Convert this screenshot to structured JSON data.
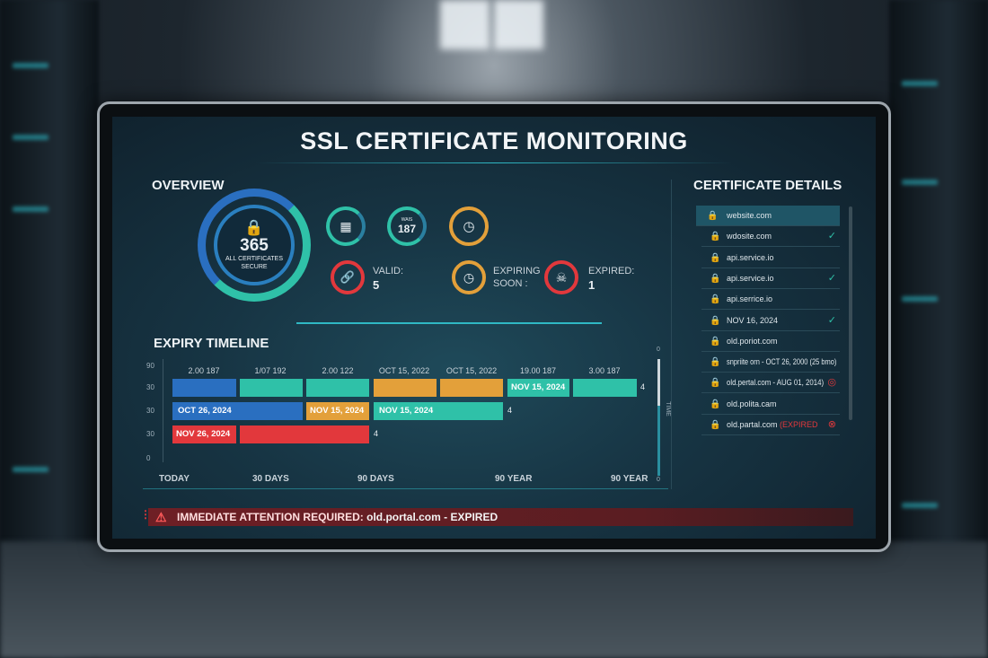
{
  "title": "SSL CERTIFICATE MONITORING",
  "overview": {
    "heading": "OVERVIEW",
    "main_value": "365",
    "main_label_1": "ALL CERTIFICATES",
    "main_label_2": "SECURE",
    "badge_value": "187",
    "badge_label": "WAIS",
    "valid_label": "VALID:",
    "valid_value": "5",
    "expiring_label_1": "EXPIRING",
    "expiring_label_2": "SOON :",
    "expired_label": "EXPIRED:",
    "expired_value": "1",
    "colors": {
      "teal": "#2fc1a8",
      "blue": "#2a6fc0",
      "orange": "#e3a03a",
      "red": "#e2383c"
    }
  },
  "timeline": {
    "heading": "EXPIRY TIMELINE",
    "column_labels": [
      "2.00 187",
      "1/07 192",
      "2.00 122",
      "OCT 15, 2022",
      "OCT 15, 2022",
      "19.00 187",
      "3.00 187"
    ],
    "y_ticks": [
      "90",
      "30",
      "30",
      "30",
      "0"
    ],
    "x_labels": [
      "TODAY",
      "30 DAYS",
      "90 DAYS",
      "90 YEAR",
      "90 YEAR"
    ],
    "row_labels": [
      "NOV 15, 2024",
      "OCT 26, 2024",
      "NOV 15, 2024",
      "NOV 15, 2024",
      "NOV 26, 2024"
    ],
    "row_ends": [
      "4",
      "4",
      "4"
    ],
    "side_label": "TIME",
    "side_top": "0",
    "side_bottom": "0"
  },
  "details": {
    "heading": "CERTIFICATE DETAILS",
    "items": [
      {
        "name": "website.com",
        "status": ""
      },
      {
        "name": "wdosite.com",
        "status": "ok"
      },
      {
        "name": "api.service.io",
        "status": ""
      },
      {
        "name": "api.service.io",
        "status": "ok"
      },
      {
        "name": "api.serrice.io",
        "status": ""
      },
      {
        "name": "NOV 16, 2024",
        "status": "ok"
      },
      {
        "name": "old.poriot.com",
        "status": ""
      },
      {
        "name": "snpriite orn - OCT 26, 2000 (25 bmo)",
        "status": ""
      },
      {
        "name": "old.pertal.com - AUG 01, 2014)",
        "status": "warning"
      },
      {
        "name": "old.polita.cam",
        "status": ""
      },
      {
        "name": "old.partal.com",
        "tag": "(EXPIRED",
        "status": "expired"
      }
    ]
  },
  "alert": {
    "text": "IMMEDIATE ATTENTION REQUIRED:",
    "detail": "old.portal.com - EXPIRED"
  }
}
